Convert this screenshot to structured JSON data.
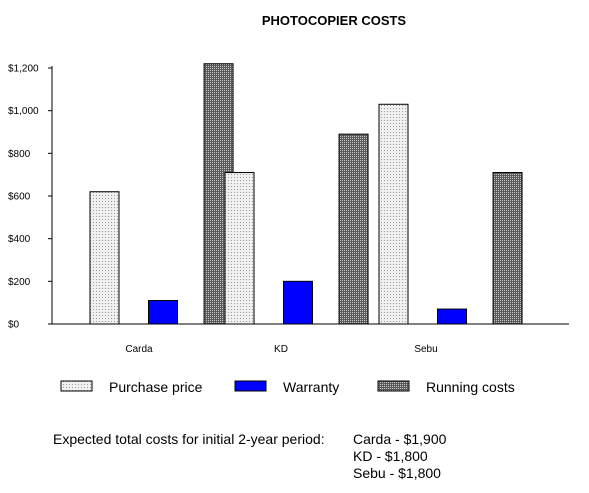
{
  "chart_data": {
    "type": "bar",
    "title": "PHOTOCOPIER COSTS",
    "xlabel": "",
    "ylabel": "",
    "categories": [
      "Carda",
      "KD",
      "Sebu"
    ],
    "series": [
      {
        "name": "Purchase price",
        "values": [
          620,
          710,
          1030
        ],
        "color": "#e0e0e0",
        "pattern": "light-dotted"
      },
      {
        "name": "Warranty",
        "values": [
          110,
          200,
          70
        ],
        "color": "#0000ff",
        "pattern": "solid"
      },
      {
        "name": "Running costs",
        "values": [
          1220,
          890,
          710
        ],
        "color": "#808080",
        "pattern": "dark-dotted"
      }
    ],
    "ylim": [
      0,
      1200
    ],
    "yticks": [
      0,
      200,
      400,
      600,
      800,
      1000,
      1200
    ],
    "ytick_labels": [
      "$0",
      "$200",
      "$400",
      "$600",
      "$800",
      "$1,000",
      "$1,200"
    ],
    "grid": false,
    "legend_position": "bottom"
  },
  "footer": {
    "label": "Expected total costs for initial 2-year period:",
    "lines": [
      "Carda - $1,900",
      "KD - $1,800",
      "Sebu - $1,800"
    ]
  }
}
